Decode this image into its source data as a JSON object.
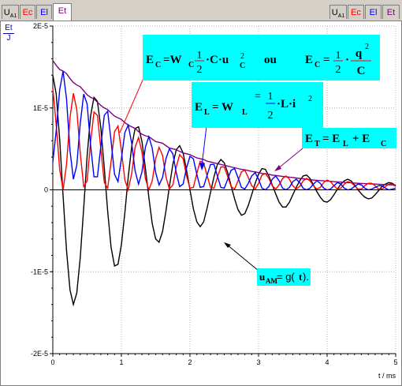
{
  "tabs_left": [
    {
      "name": "U",
      "sub": "A1",
      "color": "#000080"
    },
    {
      "name": "Ec",
      "sub": "",
      "color": "#ff0000"
    },
    {
      "name": "El",
      "sub": "",
      "color": "#0000ff"
    },
    {
      "name": "Et",
      "sub": "",
      "color": "#800080"
    }
  ],
  "tabs_right": [
    {
      "name": "U",
      "sub": "A1",
      "color": "#000080"
    },
    {
      "name": "Ec",
      "sub": "",
      "color": "#ff0000"
    },
    {
      "name": "El",
      "sub": "",
      "color": "#0000ff"
    },
    {
      "name": "Et",
      "sub": "",
      "color": "#800080"
    }
  ],
  "active_tab": 3,
  "y_axis_unit": {
    "num": "Et",
    "den": "J"
  },
  "annotations": {
    "ec": {
      "lhs": "E",
      "lhs_sub": "C",
      "eq": "=W",
      "eq_sub": "C",
      "frac1_num": "1",
      "frac1_den": "2",
      "term": "·C·u",
      "term_sup": "2",
      "term_sub": "C",
      "ou": "ou",
      "lhs2": "E",
      "lhs2_sub": "C",
      "frac2_num": "1",
      "frac2_den": "2",
      "q": "q",
      "q_sup": "2",
      "c": "C"
    },
    "el": {
      "lhs": "E",
      "lhs_sub": "L",
      "eq": "= W",
      "eq_sub": "L",
      "frac_num": "1",
      "frac_den": "2",
      "term": "·L·i",
      "term_sup": "2"
    },
    "et": {
      "lhs": "E",
      "lhs_sub": "T",
      "rhs": "= E",
      "rhs_sub1": "L",
      "plus": "+ E",
      "rhs_sub2": "C"
    },
    "uam": {
      "u": "u",
      "sub": "AM",
      "rest": " = g(",
      "t": "t",
      "close": ")."
    }
  },
  "chart_data": {
    "type": "line",
    "xlabel": "t / ms",
    "x_ticks": [
      "0",
      "1",
      "2",
      "3",
      "4",
      "5"
    ],
    "y_ticks": [
      "2E-5",
      "1E-5",
      "0",
      "-1E-5",
      "-2E-5"
    ],
    "xlim": [
      0,
      5
    ],
    "ylim": [
      -2e-05,
      2e-05
    ],
    "grid": true,
    "series": [
      {
        "key": "uam",
        "color": "#000000",
        "x": [
          0,
          0.05,
          0.1,
          0.15,
          0.2,
          0.25,
          0.3,
          0.35,
          0.4,
          0.45,
          0.5,
          0.55,
          0.6,
          0.65,
          0.7,
          0.75,
          0.8,
          0.85,
          0.9,
          0.95,
          1.0,
          1.05,
          1.1,
          1.15,
          1.2,
          1.25,
          1.3,
          1.35,
          1.4,
          1.45,
          1.5,
          1.55,
          1.6,
          1.65,
          1.7,
          1.75,
          1.8,
          1.85,
          1.9,
          1.95,
          2.0,
          2.05,
          2.1,
          2.15,
          2.2,
          2.25,
          2.3,
          2.35,
          2.4,
          2.45,
          2.5,
          2.55,
          2.6,
          2.65,
          2.7,
          2.75,
          2.8,
          2.85,
          2.9,
          2.95,
          3.0,
          3.05,
          3.1,
          3.15,
          3.2,
          3.25,
          3.3,
          3.35,
          3.4,
          3.45,
          3.5,
          3.55,
          3.6,
          3.65,
          3.7,
          3.75,
          3.8,
          3.85,
          3.9,
          3.95,
          4.0,
          4.05,
          4.1,
          4.15,
          4.2,
          4.25,
          4.3,
          4.35,
          4.4,
          4.45,
          4.5,
          4.55,
          4.6,
          4.65,
          4.7,
          4.75,
          4.8,
          4.85,
          4.9,
          4.95,
          5.0
        ],
        "y": [
          1.4e-05,
          1.17e-05,
          6.2e-06,
          -7e-07,
          -7.4e-06,
          -1.22e-05,
          -1.4e-05,
          -1.26e-05,
          -8.3e-06,
          -2.2e-06,
          4.1e-06,
          9e-06,
          1.13e-05,
          1.08e-05,
          7.6e-06,
          2.7e-06,
          -2.6e-06,
          -7e-06,
          -9.3e-06,
          -9.1e-06,
          -6.7e-06,
          -2.8e-06,
          1.6e-06,
          5.3e-06,
          7.5e-06,
          7.7e-06,
          5.9e-06,
          2.7e-06,
          -9e-07,
          -4.1e-06,
          -6e-06,
          -6.4e-06,
          -5.1e-06,
          -2.6e-06,
          4e-07,
          3.1e-06,
          4.9e-06,
          5.4e-06,
          4.5e-06,
          2.4e-06,
          0.0,
          -2.3e-06,
          -3.9e-06,
          -4.5e-06,
          -3.9e-06,
          -2.2e-06,
          -3e-07,
          1.6e-06,
          3.1e-06,
          3.7e-06,
          3.3e-06,
          2.1e-06,
          5e-07,
          -1.1e-06,
          -2.4e-06,
          -3.1e-06,
          -2.9e-06,
          -1.9e-06,
          -6e-07,
          8e-07,
          1.9e-06,
          2.6e-06,
          2.5e-06,
          1.7e-06,
          6e-07,
          -5e-07,
          -1.5e-06,
          -2.1e-06,
          -2.1e-06,
          -1.5e-06,
          -6e-07,
          3e-07,
          1.1e-06,
          1.7e-06,
          1.8e-06,
          1.4e-06,
          6e-07,
          -2e-07,
          -9e-07,
          -1.4e-06,
          -1.5e-06,
          -1.2e-06,
          -6e-07,
          1e-07,
          7e-07,
          1.1e-06,
          1.3e-06,
          1.1e-06,
          6e-07,
          0.0,
          -5e-07,
          -9e-07,
          -1.1e-06,
          -1e-06,
          -6e-07,
          -1e-07,
          4e-07,
          7e-07,
          9e-07,
          8e-07,
          5e-07
        ]
      },
      {
        "key": "et",
        "color": "#800080",
        "x": [
          0,
          0.05,
          0.1,
          0.15,
          0.2,
          0.25,
          0.3,
          0.35,
          0.4,
          0.45,
          0.5,
          0.55,
          0.6,
          0.65,
          0.7,
          0.75,
          0.8,
          0.85,
          0.9,
          0.95,
          1.0,
          1.05,
          1.1,
          1.15,
          1.2,
          1.25,
          1.3,
          1.35,
          1.4,
          1.45,
          1.5,
          1.55,
          1.6,
          1.65,
          1.7,
          1.75,
          1.8,
          1.85,
          1.9,
          1.95,
          2.0,
          2.05,
          2.1,
          2.15,
          2.2,
          2.25,
          2.3,
          2.35,
          2.4,
          2.45,
          2.5,
          2.55,
          2.6,
          2.65,
          2.7,
          2.75,
          2.8,
          2.85,
          2.9,
          2.95,
          3.0,
          3.05,
          3.1,
          3.15,
          3.2,
          3.25,
          3.3,
          3.35,
          3.4,
          3.45,
          3.5,
          3.55,
          3.6,
          3.65,
          3.7,
          3.75,
          3.8,
          3.85,
          3.9,
          3.95,
          4.0,
          4.05,
          4.1,
          4.15,
          4.2,
          4.25,
          4.3,
          4.35,
          4.4,
          4.45,
          4.5,
          4.55,
          4.6,
          4.65,
          4.7,
          4.75,
          4.8,
          4.85,
          4.9,
          4.95,
          5.0
        ],
        "y": [
          1.58e-05,
          1.52e-05,
          1.47e-05,
          1.45e-05,
          1.42e-05,
          1.36e-05,
          1.31e-05,
          1.28e-05,
          1.26e-05,
          1.21e-05,
          1.16e-05,
          1.13e-05,
          1.11e-05,
          1.07e-05,
          1.03e-05,
          1e-05,
          9.8e-06,
          9.4e-06,
          9e-06,
          8.8e-06,
          8.6e-06,
          8.2e-06,
          7.9e-06,
          7.7e-06,
          7.5e-06,
          7.1e-06,
          6.8e-06,
          6.6e-06,
          6.5e-06,
          6.2e-06,
          5.9e-06,
          5.8e-06,
          5.7e-06,
          5.4e-06,
          5.1e-06,
          5e-06,
          4.9e-06,
          4.7e-06,
          4.5e-06,
          4.4e-06,
          4.3e-06,
          4.1e-06,
          3.9e-06,
          3.8e-06,
          3.7e-06,
          3.5e-06,
          3.4e-06,
          3.3e-06,
          3.2e-06,
          3.1e-06,
          3e-06,
          2.9e-06,
          2.8e-06,
          2.7e-06,
          2.6e-06,
          2.5e-06,
          2.45e-06,
          2.35e-06,
          2.25e-06,
          2.2e-06,
          2.1e-06,
          2e-06,
          1.95e-06,
          1.9e-06,
          1.8e-06,
          1.75e-06,
          1.7e-06,
          1.65e-06,
          1.6e-06,
          1.55e-06,
          1.5e-06,
          1.45e-06,
          1.4e-06,
          1.35e-06,
          1.3e-06,
          1.25e-06,
          1.2e-06,
          1.17e-06,
          1.13e-06,
          1.1e-06,
          1.07e-06,
          1.04e-06,
          1e-06,
          9.7e-07,
          9.4e-07,
          9.1e-07,
          8.8e-07,
          8.6e-07,
          8.3e-07,
          8e-07,
          7.8e-07,
          7.6e-07,
          7.4e-07,
          7.2e-07,
          7e-07,
          6.8e-07,
          6.6e-07,
          6.4e-07,
          6.2e-07,
          6e-07,
          5.8e-07
        ]
      },
      {
        "key": "ec",
        "color": "#ff0000",
        "x": [
          0,
          0.05,
          0.1,
          0.15,
          0.2,
          0.25,
          0.3,
          0.35,
          0.4,
          0.45,
          0.5,
          0.55,
          0.6,
          0.65,
          0.7,
          0.75,
          0.8,
          0.85,
          0.9,
          0.95,
          1.0,
          1.05,
          1.1,
          1.15,
          1.2,
          1.25,
          1.3,
          1.35,
          1.4,
          1.45,
          1.5,
          1.55,
          1.6,
          1.65,
          1.7,
          1.75,
          1.8,
          1.85,
          1.9,
          1.95,
          2.0,
          2.05,
          2.1,
          2.15,
          2.2,
          2.25,
          2.3,
          2.35,
          2.4,
          2.45,
          2.5,
          2.55,
          2.6,
          2.65,
          2.7,
          2.75,
          2.8,
          2.85,
          2.9,
          2.95,
          3.0,
          3.05,
          3.1,
          3.15,
          3.2,
          3.25,
          3.3,
          3.35,
          3.4,
          3.45,
          3.5,
          3.55,
          3.6,
          3.65,
          3.7,
          3.75,
          3.8,
          3.85,
          3.9,
          3.95,
          4.0,
          4.05,
          4.1,
          4.15,
          4.2,
          4.25,
          4.3,
          4.35,
          4.4,
          4.45,
          4.5,
          4.55,
          4.6,
          4.65,
          4.7,
          4.75,
          4.8,
          4.85,
          4.9,
          4.95,
          5.0
        ],
        "y": [
          1.24e-05,
          8e-06,
          2.5e-06,
          0.0,
          3.1e-06,
          8.8e-06,
          1.18e-05,
          9.8e-06,
          4.5e-06,
          4e-07,
          1.1e-06,
          5.8e-06,
          9.5e-06,
          9.1e-06,
          5e-06,
          9e-07,
          2e-07,
          3.4e-06,
          7.1e-06,
          7.8e-06,
          4.8e-06,
          1.2e-06,
          0.0,
          2e-06,
          5.2e-06,
          6.4e-06,
          4.6e-06,
          1.4e-06,
          0.0,
          1.1e-06,
          3.8e-06,
          5.2e-06,
          4.2e-06,
          1.6e-06,
          1e-07,
          6e-07,
          2.8e-06,
          4.3e-06,
          3.8e-06,
          1.7e-06,
          2e-07,
          3e-07,
          2e-06,
          3.5e-06,
          3.3e-06,
          1.7e-06,
          3e-07,
          2e-07,
          1.5e-06,
          2.8e-06,
          2.8e-06,
          1.6e-06,
          4e-07,
          1e-07,
          1.1e-06,
          2.2e-06,
          2.4e-06,
          1.5e-06,
          5e-07,
          1e-07,
          8e-07,
          1.8e-06,
          2e-06,
          1.4e-06,
          5e-07,
          1e-07,
          6e-07,
          1.4e-06,
          1.7e-06,
          1.3e-06,
          5e-07,
          1e-07,
          4e-07,
          1.1e-06,
          1.4e-06,
          1.1e-06,
          5e-07,
          1e-07,
          3e-07,
          9e-07,
          1.2e-06,
          1e-06,
          5e-07,
          1e-07,
          2e-07,
          7e-07,
          1e-06,
          9e-07,
          5e-07,
          1e-07,
          1e-07,
          5e-07,
          8e-07,
          8e-07,
          5e-07,
          1e-07,
          1e-07,
          4e-07,
          7e-07,
          7e-07,
          4e-07
        ]
      },
      {
        "key": "el",
        "color": "#0000ff",
        "x": [
          0,
          0.05,
          0.1,
          0.15,
          0.2,
          0.25,
          0.3,
          0.35,
          0.4,
          0.45,
          0.5,
          0.55,
          0.6,
          0.65,
          0.7,
          0.75,
          0.8,
          0.85,
          0.9,
          0.95,
          1.0,
          1.05,
          1.1,
          1.15,
          1.2,
          1.25,
          1.3,
          1.35,
          1.4,
          1.45,
          1.5,
          1.55,
          1.6,
          1.65,
          1.7,
          1.75,
          1.8,
          1.85,
          1.9,
          1.95,
          2.0,
          2.05,
          2.1,
          2.15,
          2.2,
          2.25,
          2.3,
          2.35,
          2.4,
          2.45,
          2.5,
          2.55,
          2.6,
          2.65,
          2.7,
          2.75,
          2.8,
          2.85,
          2.9,
          2.95,
          3.0,
          3.05,
          3.1,
          3.15,
          3.2,
          3.25,
          3.3,
          3.35,
          3.4,
          3.45,
          3.5,
          3.55,
          3.6,
          3.65,
          3.7,
          3.75,
          3.8,
          3.85,
          3.9,
          3.95,
          4.0,
          4.05,
          4.1,
          4.15,
          4.2,
          4.25,
          4.3,
          4.35,
          4.4,
          4.45,
          4.5,
          4.55,
          4.6,
          4.65,
          4.7,
          4.75,
          4.8,
          4.85,
          4.9,
          4.95,
          5.0
        ],
        "y": [
          3.4e-06,
          7.2e-06,
          1.22e-05,
          1.45e-05,
          1.11e-05,
          4.8e-06,
          1.3e-06,
          3e-06,
          8.1e-06,
          1.17e-05,
          1.05e-05,
          5.5e-06,
          1.6e-06,
          1.6e-06,
          5.3e-06,
          9.1e-06,
          9.6e-06,
          6e-06,
          1.9e-06,
          1e-06,
          3.8e-06,
          7e-06,
          7.9e-06,
          5.7e-06,
          2.3e-06,
          7e-07,
          2.2e-06,
          5.2e-06,
          6.5e-06,
          5.1e-06,
          2.1e-06,
          6e-07,
          1.5e-06,
          3.8e-06,
          5e-06,
          4.4e-06,
          2.1e-06,
          4e-07,
          7e-07,
          2.7e-06,
          4.1e-06,
          3.8e-06,
          1.9e-06,
          3e-07,
          4e-07,
          1.8e-06,
          3.1e-06,
          3.1e-06,
          1.7e-06,
          3e-07,
          2e-07,
          1.3e-06,
          2.4e-06,
          2.6e-06,
          1.5e-06,
          3e-07,
          1e-07,
          8e-07,
          1.7e-06,
          2.1e-06,
          1.3e-06,
          2e-07,
          0.0,
          4e-07,
          1.3e-06,
          1.7e-06,
          1.1e-06,
          2e-07,
          0.0,
          3e-07,
          1e-06,
          1.3e-06,
          9e-07,
          2e-07,
          0.0,
          2e-07,
          7e-07,
          1.1e-06,
          8e-07,
          2e-07,
          0.0,
          1e-07,
          5e-07,
          9e-07,
          7e-07,
          2e-07,
          0.0,
          1e-07,
          4e-07,
          7e-07,
          6e-07,
          2e-07,
          0.0,
          1e-07,
          3e-07,
          5e-07,
          5e-07,
          2e-07,
          0.0,
          1e-07,
          2e-07
        ]
      }
    ]
  }
}
